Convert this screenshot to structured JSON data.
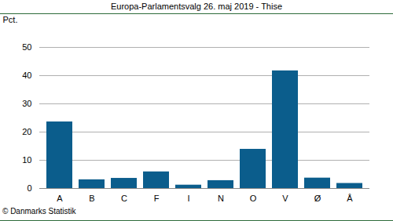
{
  "chart_data": {
    "type": "bar",
    "title": "Europa-Parlamentsvalg 26. maj 2019 - Thise",
    "y_label": "Pct.",
    "caption": "© Danmarks Statistik",
    "categories": [
      "A",
      "B",
      "C",
      "F",
      "I",
      "N",
      "O",
      "V",
      "Ø",
      "Å"
    ],
    "values": [
      23.6,
      3.1,
      3.6,
      5.9,
      1.2,
      2.8,
      13.9,
      41.7,
      3.7,
      1.8
    ],
    "color": "#0b5d8c",
    "ylim": [
      0,
      50
    ],
    "yticks": [
      0,
      10,
      20,
      30,
      40,
      50
    ],
    "grid": true
  }
}
